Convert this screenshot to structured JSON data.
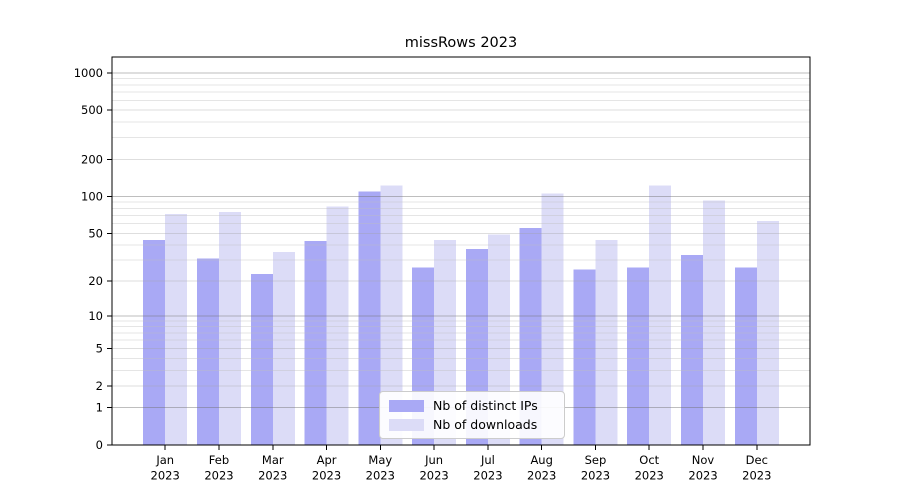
{
  "title": "missRows 2023",
  "chart_data": {
    "type": "bar",
    "title": "missRows 2023",
    "categories": [
      "Jan 2023",
      "Feb 2023",
      "Mar 2023",
      "Apr 2023",
      "May 2023",
      "Jun 2023",
      "Jul 2023",
      "Aug 2023",
      "Sep 2023",
      "Oct 2023",
      "Nov 2023",
      "Dec 2023"
    ],
    "series": [
      {
        "name": "Nb of distinct IPs",
        "color": "#a9a9f5",
        "values": [
          44,
          31,
          23,
          43,
          110,
          26,
          37,
          55,
          25,
          26,
          33,
          26
        ]
      },
      {
        "name": "Nb of downloads",
        "color": "#dcdcf7",
        "values": [
          72,
          75,
          35,
          83,
          123,
          44,
          49,
          106,
          44,
          123,
          93,
          63
        ]
      }
    ],
    "xlabel": "",
    "ylabel": "",
    "yscale": "log1p",
    "ylim": [
      0,
      1320
    ],
    "yticks": [
      0,
      1,
      2,
      5,
      10,
      20,
      50,
      100,
      200,
      500,
      1000
    ],
    "ytick_labels": [
      "0",
      "1",
      "2",
      "5",
      "10",
      "20",
      "50",
      "100",
      "200",
      "500",
      "1000"
    ],
    "minor_yticks": [
      3,
      4,
      6,
      7,
      8,
      9,
      30,
      40,
      60,
      70,
      80,
      90,
      300,
      400,
      600,
      700,
      800,
      900
    ],
    "grid": true,
    "legend_position": "lower-center"
  },
  "colors": {
    "axis": "#000000",
    "major_grid": "#c6c6c6",
    "minor_grid": "#ececec",
    "background": "#ffffff"
  }
}
